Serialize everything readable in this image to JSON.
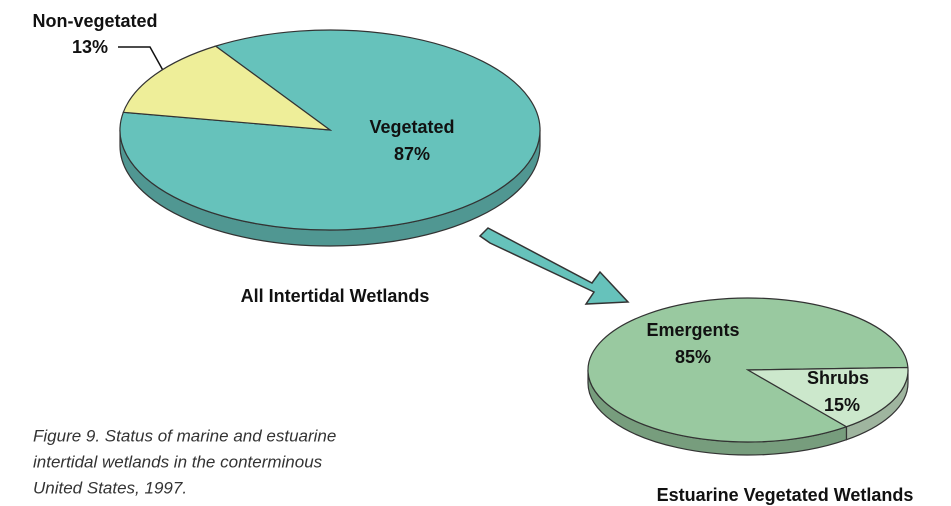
{
  "chart_data": [
    {
      "type": "pie",
      "title": "All Intertidal Wetlands",
      "categories": [
        "Vegetated",
        "Non-vegetated"
      ],
      "values": [
        87,
        13
      ],
      "value_labels": [
        "87%",
        "13%"
      ],
      "colors": [
        "#66c2bb",
        "#eeee99"
      ]
    },
    {
      "type": "pie",
      "title": "Estuarine Vegetated Wetlands",
      "categories": [
        "Emergents",
        "Shrubs"
      ],
      "values": [
        85,
        15
      ],
      "value_labels": [
        "85%",
        "15%"
      ],
      "colors": [
        "#99c9a0",
        "#cce8cc"
      ]
    }
  ],
  "caption": [
    "Figure 9. Status of marine and estuarine",
    "intertidal wetlands in the conterminous",
    "United States, 1997."
  ]
}
